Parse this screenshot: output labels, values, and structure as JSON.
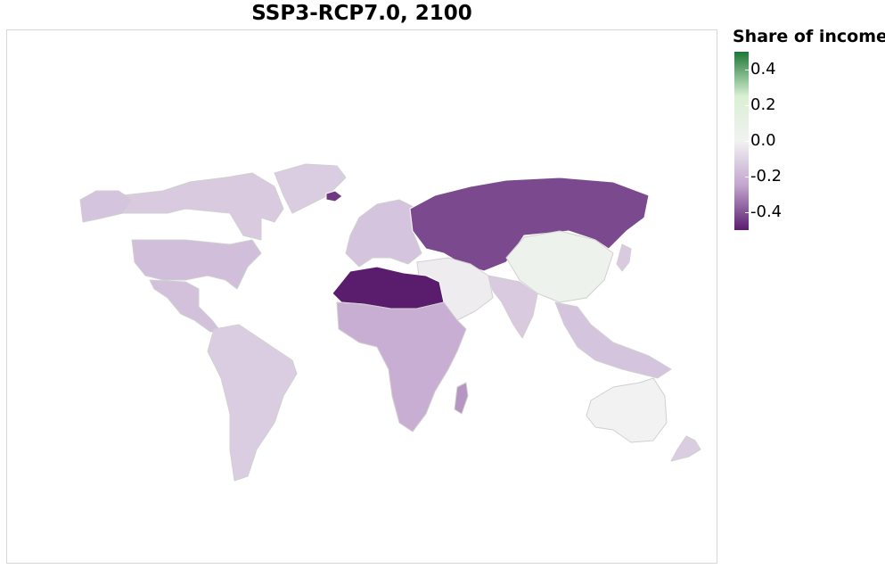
{
  "title": "SSP3-RCP7.0, 2100",
  "legend": {
    "title": "Share of income",
    "domain": [
      -0.5,
      0.5
    ],
    "ticks": [
      {
        "value": 0.4,
        "label": "0.4"
      },
      {
        "value": 0.2,
        "label": "0.2"
      },
      {
        "value": 0.0,
        "label": "0.0"
      },
      {
        "value": -0.2,
        "label": "-0.2"
      },
      {
        "value": -0.4,
        "label": "-0.4"
      }
    ],
    "colors": {
      "high": "#1b7837",
      "mid_high": "#d9f0d3",
      "zero": "#f2f2f2",
      "mid_low": "#c2a5cf",
      "low": "#5a1d6e"
    }
  },
  "chart_data": {
    "type": "choropleth",
    "variable": "Share of income",
    "regions": [
      {
        "name": "North America north",
        "value": -0.13
      },
      {
        "name": "United States",
        "value": -0.17
      },
      {
        "name": "Alaska",
        "value": -0.15
      },
      {
        "name": "Greenland",
        "value": -0.12
      },
      {
        "name": "Mexico and Central America",
        "value": -0.16
      },
      {
        "name": "South America",
        "value": -0.12
      },
      {
        "name": "Europe",
        "value": -0.15
      },
      {
        "name": "Russia and Central Asia",
        "value": -0.42
      },
      {
        "name": "Northern Africa",
        "value": -0.5
      },
      {
        "name": "Sub-Saharan Africa",
        "value": -0.22
      },
      {
        "name": "Madagascar",
        "value": -0.28
      },
      {
        "name": "Middle East",
        "value": -0.02
      },
      {
        "name": "China",
        "value": 0.05
      },
      {
        "name": "South Asia",
        "value": -0.13
      },
      {
        "name": "Southeast Asia",
        "value": -0.15
      },
      {
        "name": "Japan",
        "value": -0.13
      },
      {
        "name": "Australia",
        "value": 0.0
      },
      {
        "name": "New Zealand",
        "value": -0.12
      },
      {
        "name": "Iceland",
        "value": -0.45
      }
    ]
  }
}
